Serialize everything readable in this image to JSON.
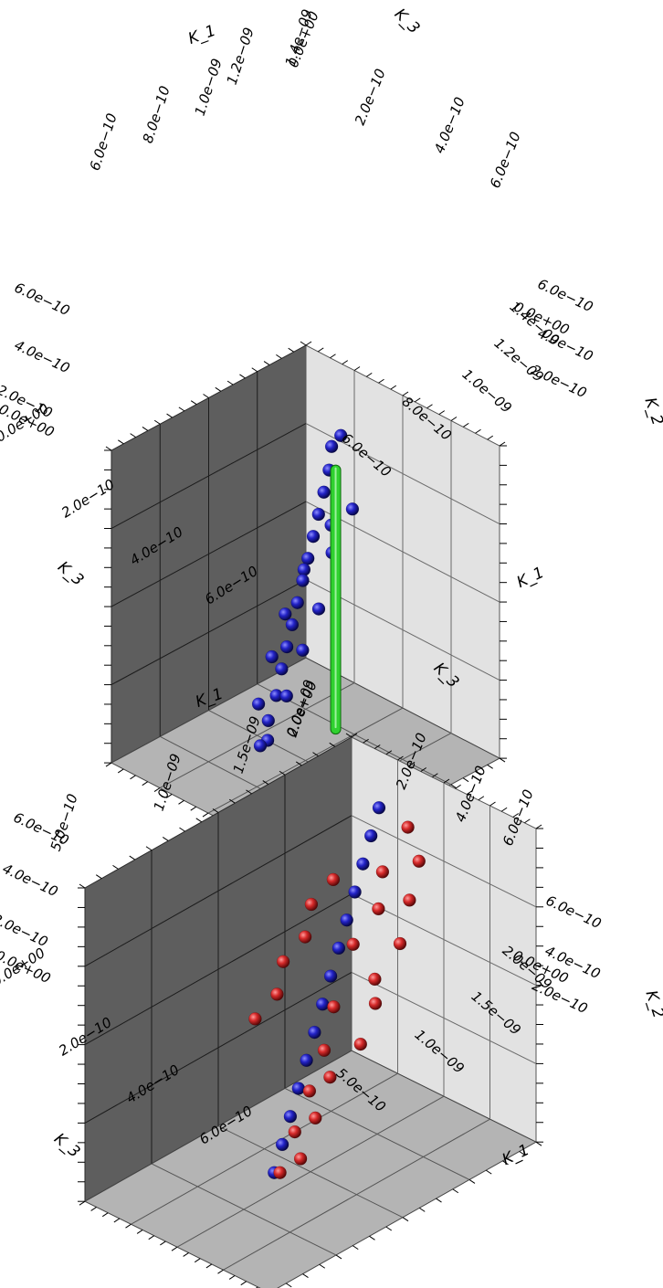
{
  "chart_data": [
    {
      "type": "scatter",
      "projection": "3d",
      "axes": {
        "k_1": {
          "label": "K_1",
          "range": [
            5e-10,
            1.4e-09
          ],
          "ticks_back": [
            "6.0e−10",
            "8.0e−10",
            "1.0e−09",
            "1.2e−09",
            "1.4e−09"
          ],
          "ticks_front": [
            "1.4e−09",
            "1.2e−09",
            "1.0e−09",
            "8.0e−10",
            "6.0e−10"
          ]
        },
        "k_2": {
          "label": "K_2",
          "range": [
            0,
            7e-10
          ],
          "ticks_right": [
            "0.0e+00",
            "2.0e−10",
            "4.0e−10",
            "6.0e−10"
          ],
          "ticks_left": [
            "0.0e+00",
            "2.0e−10",
            "4.0e−10",
            "6.0e−10"
          ]
        },
        "k_3": {
          "label": "K_3",
          "range": [
            0,
            7e-10
          ],
          "ticks_top": [
            "0.0e+00",
            "2.0e−10",
            "4.0e−10",
            "6.0e−10"
          ],
          "ticks_bottom": [
            "0.0e+00",
            "2.0e−10",
            "4.0e−10",
            "6.0e−10"
          ]
        }
      },
      "grid": true,
      "series": [
        {
          "color": "#1a1ab4",
          "marker": "sphere",
          "points": [
            [
              6.2e-10,
              6e-10,
              2.2e-10
            ],
            [
              6.5e-10,
              5.8e-10,
              2.1e-10
            ],
            [
              7e-10,
              5.5e-10,
              2.4e-10
            ],
            [
              7.5e-10,
              5.2e-10,
              2.6e-10
            ],
            [
              8e-10,
              4.9e-10,
              2.8e-10
            ],
            [
              8.5e-10,
              4.6e-10,
              3e-10
            ],
            [
              9e-10,
              4.3e-10,
              3.2e-10
            ],
            [
              9.5e-10,
              4e-10,
              3.4e-10
            ],
            [
              1e-09,
              3.7e-10,
              3.6e-10
            ],
            [
              1.05e-09,
              3.4e-10,
              3.8e-10
            ],
            [
              1.1e-09,
              3.1e-10,
              4e-10
            ],
            [
              1.15e-09,
              2.8e-10,
              4.2e-10
            ],
            [
              1.2e-09,
              2.4e-10,
              4.4e-10
            ],
            [
              1.25e-09,
              2e-10,
              4.5e-10
            ],
            [
              1.3e-09,
              1.6e-10,
              4.6e-10
            ],
            [
              7.2e-10,
              5e-10,
              3.4e-10
            ],
            [
              7.8e-10,
              4.7e-10,
              3.1e-10
            ],
            [
              8.4e-10,
              4.4e-10,
              3.6e-10
            ],
            [
              8.8e-10,
              3.9e-10,
              2.9e-10
            ],
            [
              9.4e-10,
              3.5e-10,
              3.9e-10
            ],
            [
              9.8e-10,
              3.2e-10,
              3e-10
            ],
            [
              1.04e-09,
              2.9e-10,
              4.1e-10
            ],
            [
              1.08e-09,
              2.6e-10,
              3.3e-10
            ],
            [
              1.14e-09,
              2.2e-10,
              4.3e-10
            ],
            [
              1.18e-09,
              1.9e-10,
              3.6e-10
            ],
            [
              1.24e-09,
              1.5e-10,
              4.4e-10
            ]
          ]
        },
        {
          "color": "#2fd12f",
          "marker": "rod",
          "points": [
            [
              9e-10,
              8e-11,
              4.2e-10
            ],
            [
              9e-10,
              6.6e-10,
              4.2e-10
            ]
          ]
        }
      ]
    },
    {
      "type": "scatter",
      "projection": "3d",
      "axes": {
        "k_1": {
          "label": "K_1",
          "range": [
            4e-10,
            2e-09
          ],
          "ticks_back": [
            "5.0e−10",
            "1.0e−09",
            "1.5e−09",
            "2.0e−09"
          ],
          "ticks_front": [
            "2.0e−09",
            "1.5e−09",
            "1.0e−09",
            "5.0e−10"
          ]
        },
        "k_2": {
          "label": "K_2",
          "range": [
            0,
            7e-10
          ],
          "ticks_right": [
            "0.0e+00",
            "2.0e−10",
            "4.0e−10",
            "6.0e−10"
          ],
          "ticks_left": [
            "0.0e+00",
            "2.0e−10",
            "4.0e−10",
            "6.0e−10"
          ]
        },
        "k_3": {
          "label": "K_3",
          "range": [
            0,
            7e-10
          ],
          "ticks_top": [
            "0.0e+00",
            "2.0e−10",
            "4.0e−10",
            "6.0e−10"
          ],
          "ticks_bottom": [
            "0.0e+00",
            "2.0e−10",
            "4.0e−10",
            "6.0e−10"
          ]
        }
      },
      "grid": true,
      "series": [
        {
          "color": "#1a1ab4",
          "marker": "sphere",
          "points": [
            [
              5.2e-10,
              6.2e-10,
              1.8e-10
            ],
            [
              6e-10,
              5.8e-10,
              2e-10
            ],
            [
              6.8e-10,
              5.4e-10,
              2.2e-10
            ],
            [
              7.6e-10,
              5e-10,
              2.4e-10
            ],
            [
              8.4e-10,
              4.6e-10,
              2.6e-10
            ],
            [
              9.2e-10,
              4.2e-10,
              2.8e-10
            ],
            [
              1e-09,
              3.8e-10,
              3e-10
            ],
            [
              1.08e-09,
              3.4e-10,
              3.2e-10
            ],
            [
              1.16e-09,
              3e-10,
              3.4e-10
            ],
            [
              1.24e-09,
              2.6e-10,
              3.6e-10
            ],
            [
              1.32e-09,
              2.2e-10,
              3.8e-10
            ],
            [
              1.4e-09,
              1.8e-10,
              4e-10
            ],
            [
              1.48e-09,
              1.4e-10,
              4.2e-10
            ],
            [
              1.56e-09,
              1e-10,
              4.4e-10
            ]
          ]
        },
        {
          "color": "#d42a2a",
          "marker": "sphere",
          "points": [
            [
              6e-10,
              6.4e-10,
              3.4e-10
            ],
            [
              6.6e-10,
              6e-10,
              4.2e-10
            ],
            [
              7.2e-10,
              5.6e-10,
              3.2e-10
            ],
            [
              7.8e-10,
              5.5e-10,
              4.6e-10
            ],
            [
              8.4e-10,
              5.2e-10,
              3.8e-10
            ],
            [
              9e-10,
              4.9e-10,
              5e-10
            ],
            [
              9.6e-10,
              4.6e-10,
              3.6e-10
            ],
            [
              1.02e-09,
              4.3e-10,
              4.8e-10
            ],
            [
              1.08e-09,
              4e-10,
              5.2e-10
            ],
            [
              1.14e-09,
              3.7e-10,
              4e-10
            ],
            [
              1.2e-09,
              3.4e-10,
              5.4e-10
            ],
            [
              1.26e-09,
              3.1e-10,
              4.4e-10
            ],
            [
              1.32e-09,
              2.8e-10,
              5e-10
            ],
            [
              1.38e-09,
              2.5e-10,
              4.6e-10
            ],
            [
              1.44e-09,
              2.2e-10,
              5.2e-10
            ],
            [
              1.5e-09,
              1.9e-10,
              4.8e-10
            ],
            [
              1.56e-09,
              1.6e-10,
              5.4e-10
            ],
            [
              1.62e-09,
              1.3e-10,
              5e-10
            ],
            [
              7e-10,
              4.8e-10,
              1.2e-10
            ],
            [
              8e-10,
              4.4e-10,
              1e-10
            ],
            [
              9e-10,
              4e-10,
              1.4e-10
            ],
            [
              1e-09,
              3.6e-10,
              1.2e-10
            ],
            [
              1.1e-09,
              3.2e-10,
              1.6e-10
            ],
            [
              1.2e-09,
              2.8e-10,
              1.4e-10
            ]
          ]
        }
      ]
    }
  ]
}
